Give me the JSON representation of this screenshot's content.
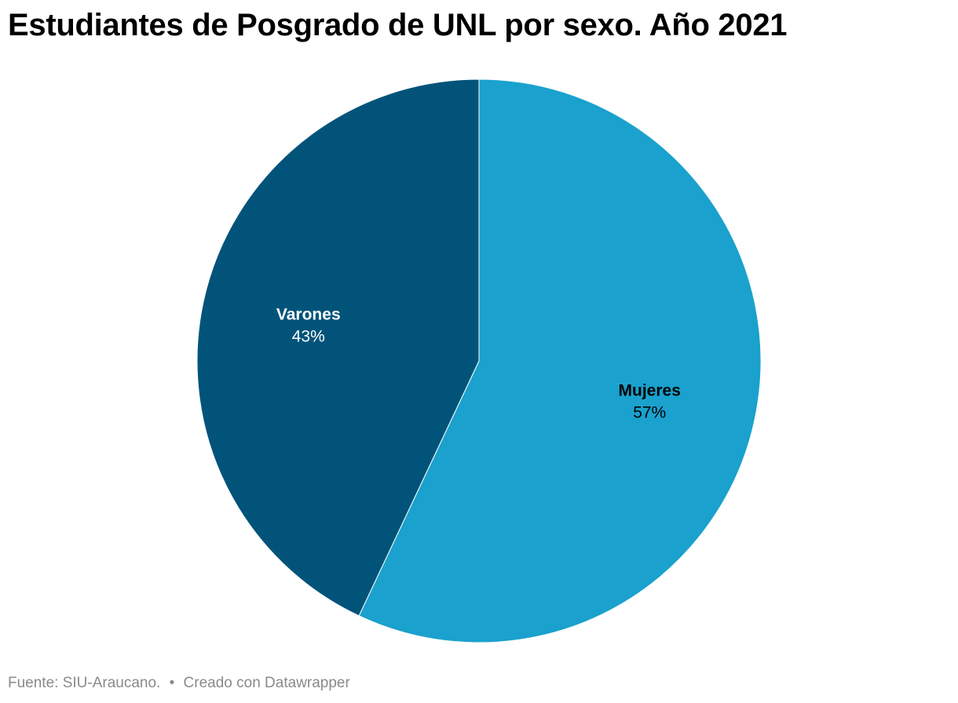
{
  "title": "Estudiantes de Posgrado de UNL por sexo. Año 2021",
  "chart_data": {
    "type": "pie",
    "title": "Estudiantes de Posgrado de UNL por sexo. Año 2021",
    "slices": [
      {
        "name": "Mujeres",
        "value": 57,
        "label": "57%",
        "color": "#1aa1cd",
        "text_color": "#000000"
      },
      {
        "name": "Varones",
        "value": 43,
        "label": "43%",
        "color": "#02537a",
        "text_color": "#ffffff"
      }
    ],
    "start_angle_deg": 0,
    "direction": "clockwise"
  },
  "footer": {
    "source": "Fuente: SIU-Araucano.",
    "separator": "•",
    "credit": "Creado con Datawrapper"
  }
}
